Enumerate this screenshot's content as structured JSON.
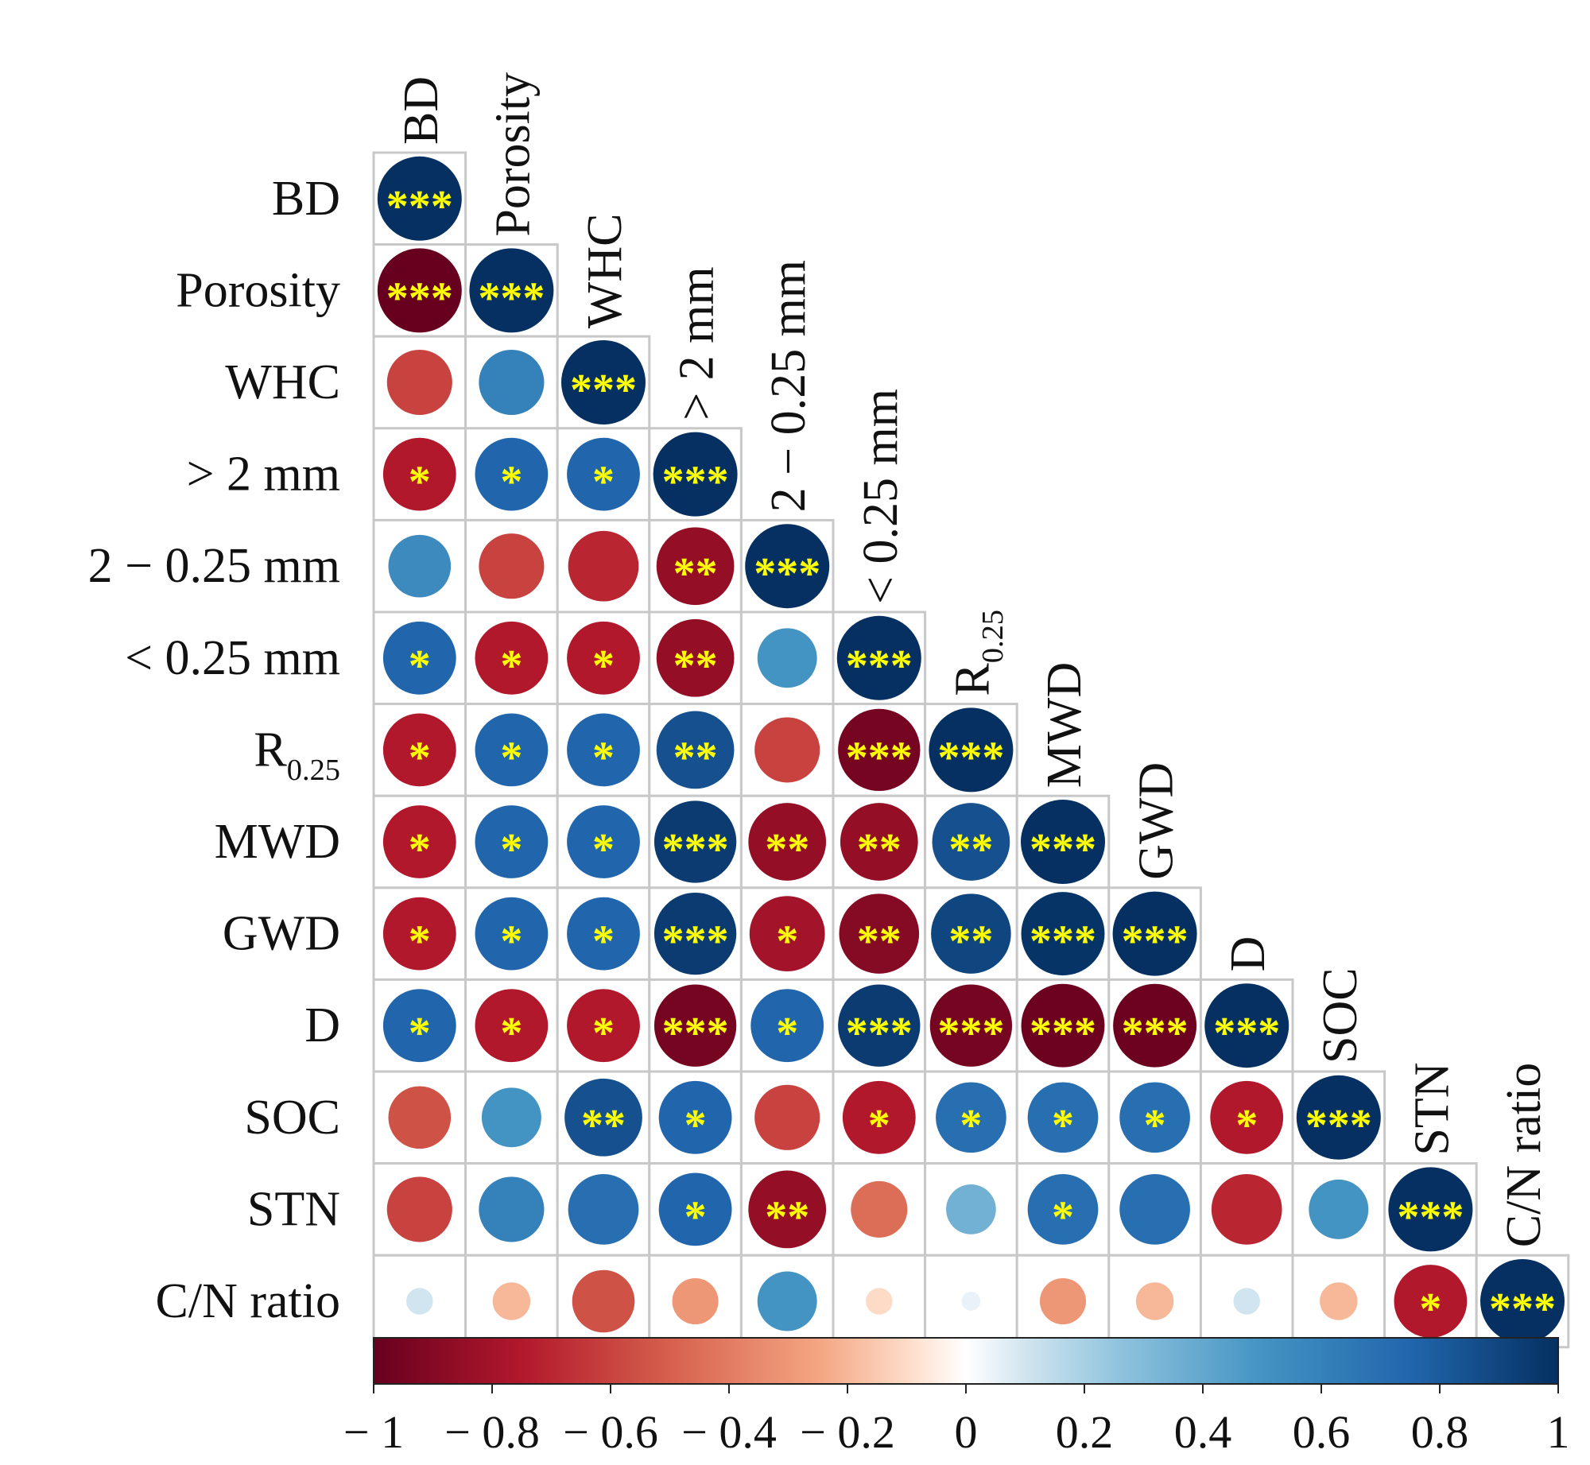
{
  "chart_data": {
    "type": "heatmap",
    "subtype": "correlation-matrix-lower-triangle-circles",
    "variables": [
      {
        "label": "BD"
      },
      {
        "label": "Porosity"
      },
      {
        "label": "WHC"
      },
      {
        "label": "> 2 mm"
      },
      {
        "label": "2 − 0.25 mm"
      },
      {
        "label": "< 0.25 mm"
      },
      {
        "label": "R",
        "subscript": "0.25"
      },
      {
        "label": "MWD"
      },
      {
        "label": "GWD"
      },
      {
        "label": "D"
      },
      {
        "label": "SOC"
      },
      {
        "label": "STN"
      },
      {
        "label": "C/N ratio"
      }
    ],
    "values": [
      [
        1
      ],
      [
        -1,
        1
      ],
      [
        -0.6,
        0.6,
        1
      ],
      [
        -0.75,
        0.75,
        0.75,
        1
      ],
      [
        0.55,
        -0.6,
        -0.7,
        -0.85,
        1
      ],
      [
        0.75,
        -0.75,
        -0.75,
        -0.85,
        0.5,
        1
      ],
      [
        -0.75,
        0.75,
        0.75,
        0.85,
        -0.6,
        -0.95,
        1
      ],
      [
        -0.75,
        0.75,
        0.75,
        0.95,
        -0.85,
        -0.85,
        0.85,
        1
      ],
      [
        -0.75,
        0.75,
        0.75,
        0.95,
        -0.8,
        -0.9,
        0.9,
        0.98,
        1
      ],
      [
        0.75,
        -0.75,
        -0.75,
        -0.95,
        0.75,
        0.95,
        -0.95,
        -0.98,
        -0.98,
        1
      ],
      [
        -0.55,
        0.5,
        0.85,
        0.75,
        -0.6,
        -0.75,
        0.7,
        0.7,
        0.7,
        -0.75,
        1
      ],
      [
        -0.6,
        0.6,
        0.7,
        0.75,
        -0.85,
        -0.45,
        0.35,
        0.7,
        0.7,
        -0.7,
        0.5,
        1
      ],
      [
        0.1,
        -0.2,
        -0.55,
        -0.3,
        0.5,
        -0.1,
        0.05,
        -0.3,
        -0.2,
        0.1,
        -0.2,
        -0.75,
        1
      ]
    ],
    "significance": [
      [
        "***"
      ],
      [
        "***",
        "***"
      ],
      [
        "",
        "",
        "***"
      ],
      [
        "*",
        "*",
        "*",
        "***"
      ],
      [
        "",
        "",
        "",
        "**",
        "***"
      ],
      [
        "*",
        "*",
        "*",
        "**",
        "",
        "***"
      ],
      [
        "*",
        "*",
        "*",
        "**",
        "",
        "***",
        "***"
      ],
      [
        "*",
        "*",
        "*",
        "***",
        "**",
        "**",
        "**",
        "***"
      ],
      [
        "*",
        "*",
        "*",
        "***",
        "*",
        "**",
        "**",
        "***",
        "***"
      ],
      [
        "*",
        "*",
        "*",
        "***",
        "*",
        "***",
        "***",
        "***",
        "***",
        "***"
      ],
      [
        "",
        "",
        "**",
        "*",
        "",
        "*",
        "*",
        "*",
        "*",
        "*",
        "***"
      ],
      [
        "",
        "",
        "",
        "*",
        "**",
        "",
        "",
        "*",
        "",
        "",
        "",
        "***"
      ],
      [
        "",
        "",
        "",
        "",
        "",
        "",
        "",
        "",
        "",
        "",
        "",
        "*",
        "***"
      ]
    ],
    "colorbar": {
      "range": [
        -1,
        1
      ],
      "ticks": [
        -1,
        -0.8,
        -0.6,
        -0.4,
        -0.2,
        0,
        0.2,
        0.4,
        0.6,
        0.8,
        1
      ],
      "tick_labels": [
        "− 1",
        "− 0.8",
        "− 0.6",
        "− 0.4",
        "− 0.2",
        "0",
        "0.2",
        "0.4",
        "0.6",
        "0.8",
        "1"
      ],
      "stops": [
        {
          "v": -1,
          "color": "#67001f"
        },
        {
          "v": -0.75,
          "color": "#b2182b"
        },
        {
          "v": -0.5,
          "color": "#d6604d"
        },
        {
          "v": -0.25,
          "color": "#f4a582"
        },
        {
          "v": -0.1,
          "color": "#fddbc7"
        },
        {
          "v": 0,
          "color": "#ffffff"
        },
        {
          "v": 0.1,
          "color": "#d1e5f0"
        },
        {
          "v": 0.25,
          "color": "#92c5de"
        },
        {
          "v": 0.5,
          "color": "#4393c3"
        },
        {
          "v": 0.75,
          "color": "#2166ac"
        },
        {
          "v": 1,
          "color": "#053061"
        }
      ]
    },
    "star_color": "#ffff00",
    "grid_color": "#c8c8c8"
  }
}
